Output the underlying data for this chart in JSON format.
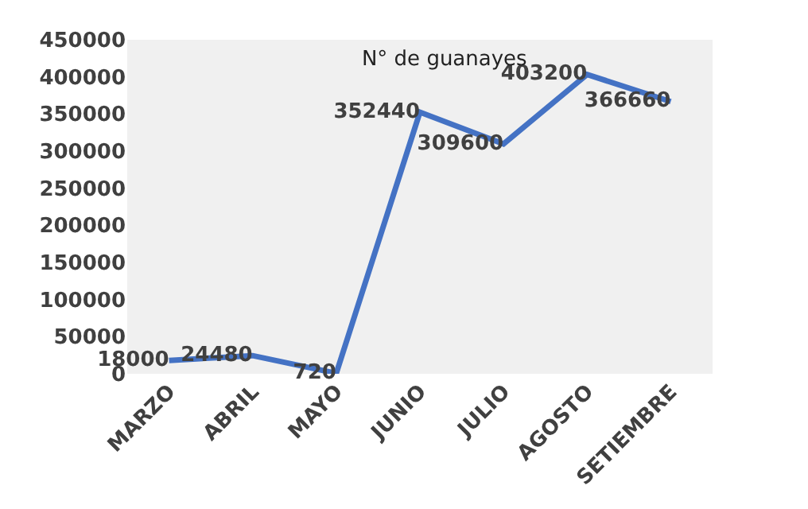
{
  "chart_data": {
    "type": "line",
    "title": "N° de guanayes",
    "categories": [
      "MARZO",
      "ABRIL",
      "MAYO",
      "JUNIO",
      "JULIO",
      "AGOSTO",
      "SETIEMBRE"
    ],
    "values": [
      18000,
      24480,
      720,
      352440,
      309600,
      403200,
      366660
    ],
    "color": "#4472c4",
    "ylim": [
      0,
      450000
    ],
    "yticks": [
      0,
      50000,
      100000,
      150000,
      200000,
      250000,
      300000,
      350000,
      400000,
      450000
    ],
    "data_labels": true,
    "grid": false,
    "legend": false,
    "marker": "none",
    "line_style": "solid"
  }
}
